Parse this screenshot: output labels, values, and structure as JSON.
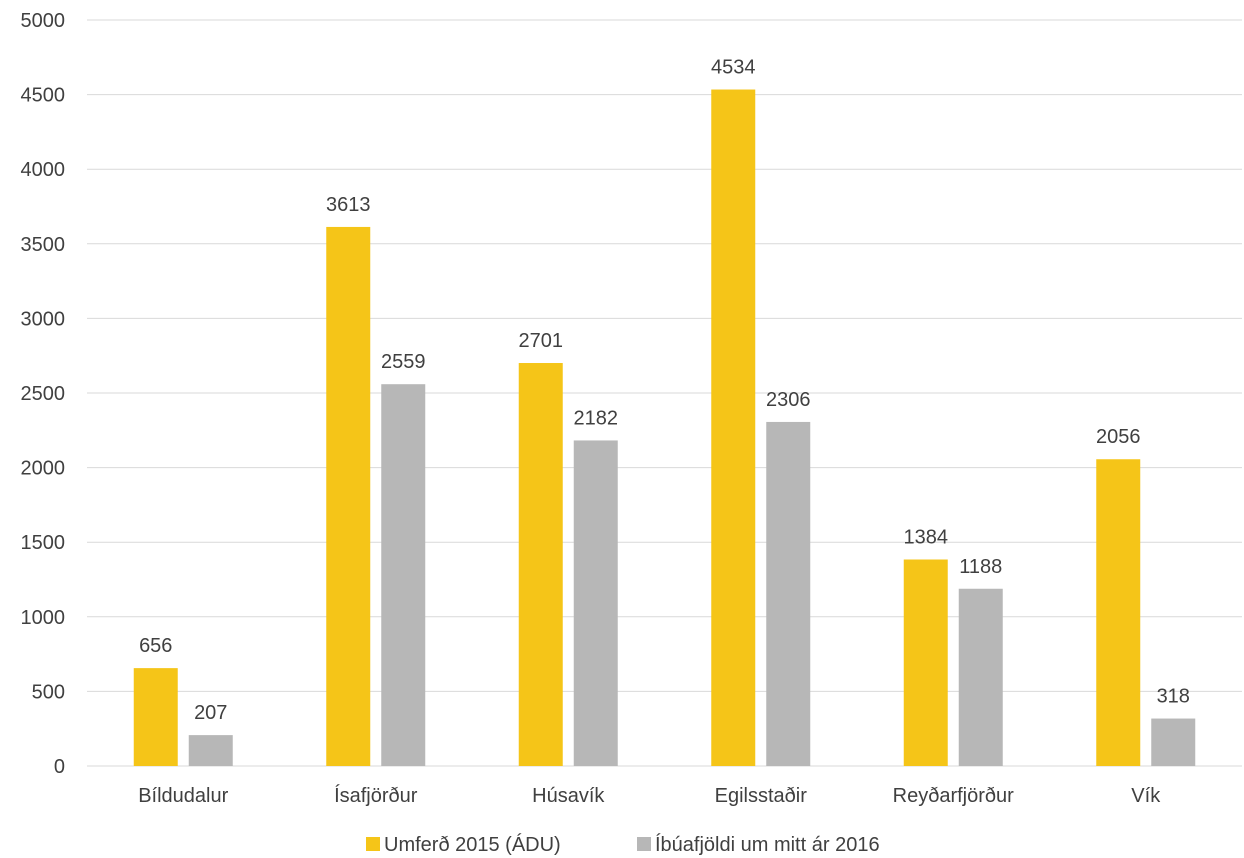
{
  "chart_data": {
    "type": "bar",
    "categories": [
      "Bíldudalur",
      "Ísafjörður",
      "Húsavík",
      "Egilsstaðir",
      "Reyðarfjörður",
      "Vík"
    ],
    "series": [
      {
        "name": "Umferð 2015 (ÁDU)",
        "color": "#f5c518",
        "values": [
          656,
          3613,
          2701,
          4534,
          1384,
          2056
        ]
      },
      {
        "name": "Íbúafjöldi um mitt ár 2016",
        "color": "#b7b7b7",
        "values": [
          207,
          2559,
          2182,
          2306,
          1188,
          318
        ]
      }
    ],
    "ylim": [
      0,
      5000
    ],
    "yticks": [
      0,
      500,
      1000,
      1500,
      2000,
      2500,
      3000,
      3500,
      4000,
      4500,
      5000
    ],
    "grid": true,
    "data_labels": true,
    "legend_position": "bottom"
  }
}
